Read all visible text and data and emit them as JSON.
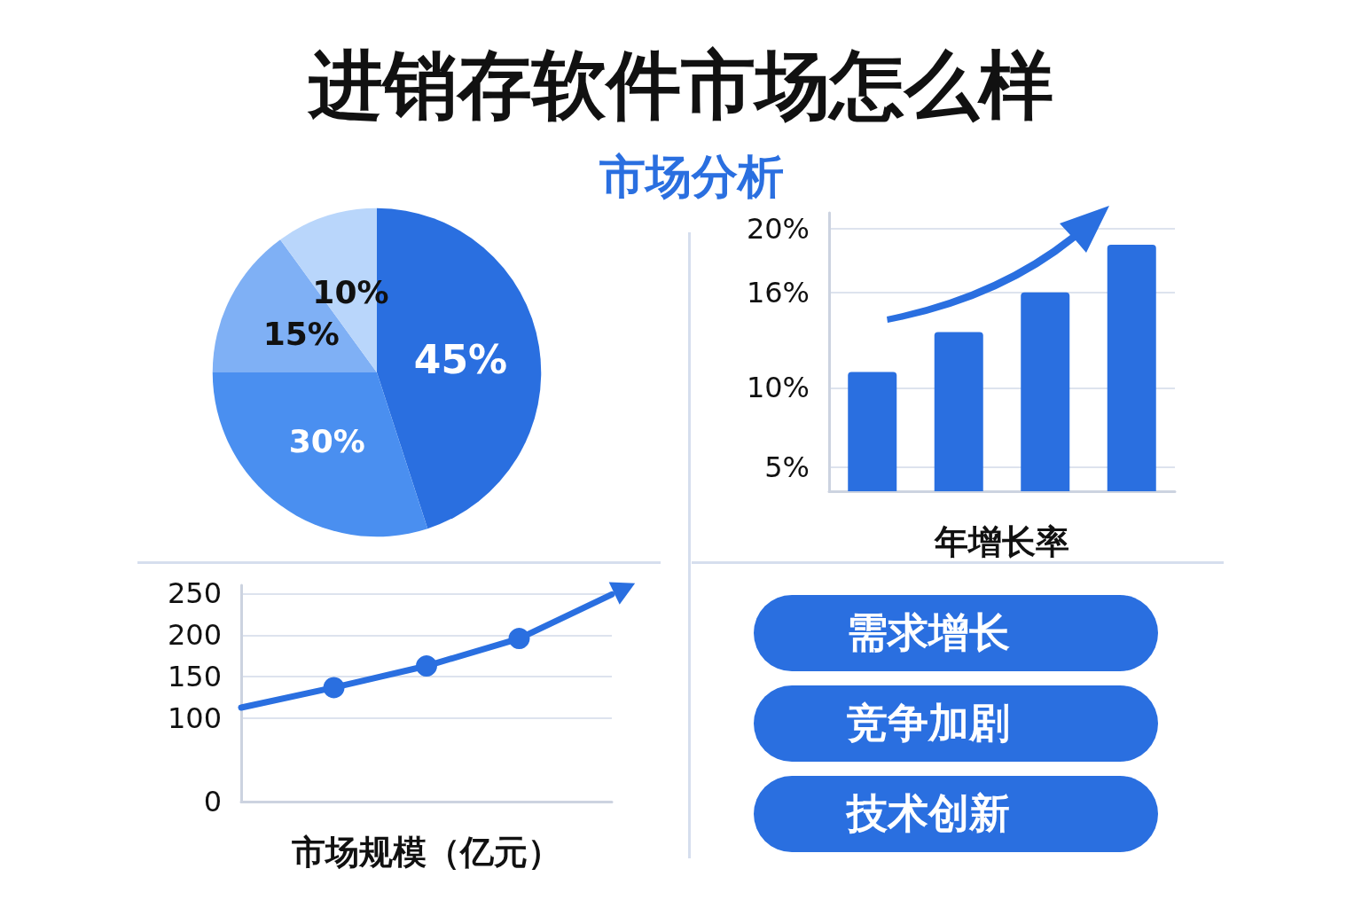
{
  "chart_data": [
    {
      "type": "pie",
      "title": "进销存软件市场怎么样",
      "subtitle": "市场分析",
      "categories": [
        null,
        null,
        null,
        null
      ],
      "values": [
        45,
        30,
        15,
        10
      ],
      "value_labels": [
        "45%",
        "30%",
        "15%",
        "10%"
      ],
      "colors": [
        "#2a6fe0",
        "#4a8ff0",
        "#7fb0f5",
        "#b9d6fb"
      ]
    },
    {
      "type": "bar",
      "xlabel": "年增长率",
      "categories": [
        null,
        null,
        null,
        null
      ],
      "values": [
        11,
        13.5,
        16,
        19
      ],
      "color": "#2a6fe0",
      "ylim": [
        3.5,
        21
      ],
      "yticks": [
        {
          "value": 5,
          "label": "5%"
        },
        {
          "value": 10,
          "label": "10%"
        },
        {
          "value": 16,
          "label": "16%"
        },
        {
          "value": 20,
          "label": "20%"
        }
      ],
      "grid": "y"
    },
    {
      "type": "line",
      "xlabel": "市场规模（亿元）",
      "categories": [
        null,
        null,
        null,
        null,
        null
      ],
      "values": [
        113,
        137,
        163,
        196,
        249
      ],
      "color": "#2a6fe0",
      "ylim": [
        0,
        260
      ],
      "yticks": [
        0,
        100,
        150,
        200,
        250
      ],
      "grid": "y",
      "marker": "circle",
      "line_style": "solid"
    },
    {
      "type": "other",
      "annotations": [
        "需求增长",
        "竞争加剧",
        "技术创新"
      ]
    }
  ]
}
